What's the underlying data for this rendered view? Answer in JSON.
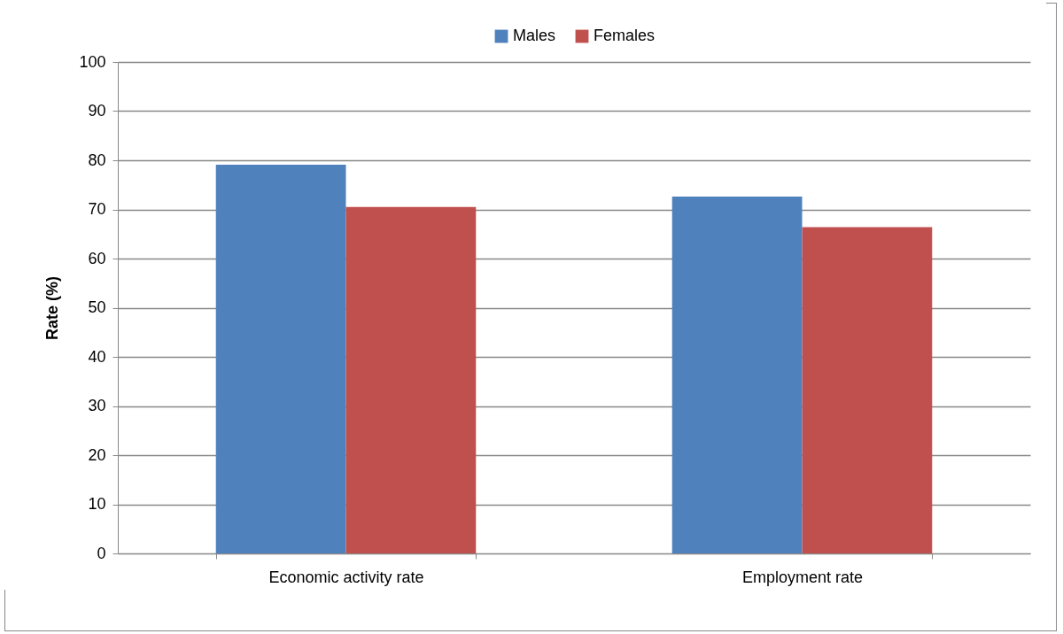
{
  "chart_data": {
    "type": "bar",
    "ylabel": "Rate (%)",
    "categories": [
      "Economic activity rate",
      "Employment rate"
    ],
    "series": [
      {
        "name": "Males",
        "color": "#4f81bd",
        "values": [
          79.1,
          72.6
        ]
      },
      {
        "name": "Females",
        "color": "#c0504d",
        "values": [
          70.5,
          66.4
        ]
      }
    ],
    "ylim": [
      0,
      100
    ],
    "yticks": [
      0,
      10,
      20,
      30,
      40,
      50,
      60,
      70,
      80,
      90,
      100
    ],
    "grid": "y",
    "legend": "top"
  }
}
